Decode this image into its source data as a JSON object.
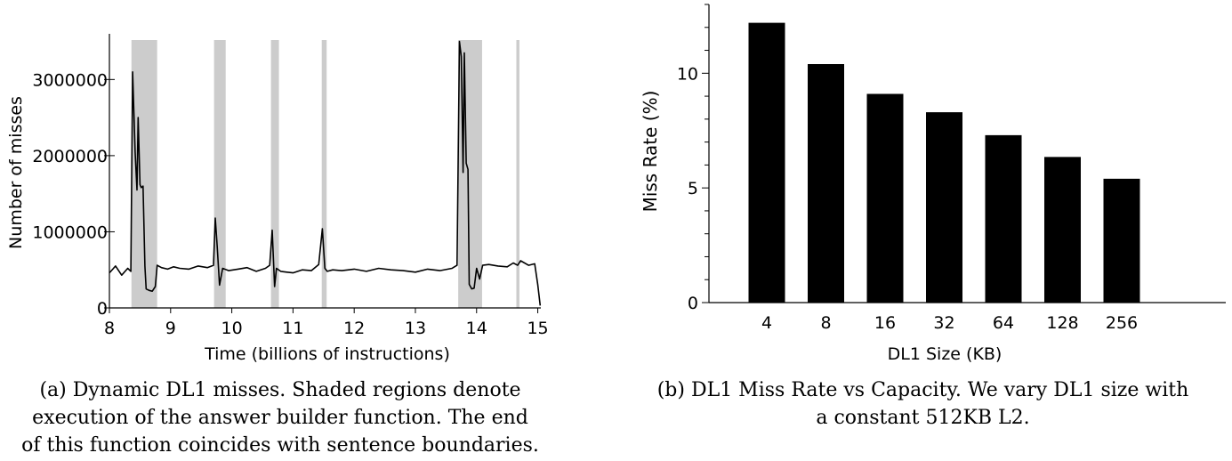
{
  "charts": {
    "a": {
      "ylabel": "Number of misses",
      "xlabel": "Time (billions of instructions)",
      "caption_lines": [
        "(a) Dynamic DL1 misses. Shaded regions denote",
        "execution of the answer builder function. The end",
        "of this function coincides with sentence boundaries."
      ]
    },
    "b": {
      "ylabel": "Miss Rate (%)",
      "xlabel": "DL1 Size (KB)",
      "caption_lines": [
        "(b) DL1 Miss Rate vs Capacity. We vary DL1 size with",
        "a constant 512KB L2."
      ]
    }
  },
  "chart_data": [
    {
      "type": "line",
      "title": "",
      "xlabel": "Time (billions of instructions)",
      "ylabel": "Number of misses",
      "xlim": [
        8,
        15.05
      ],
      "ylim": [
        0,
        3600000
      ],
      "xticks": [
        8,
        9,
        10,
        11,
        12,
        13,
        14,
        15
      ],
      "yticks": [
        0,
        1000000,
        2000000,
        3000000
      ],
      "shaded_regions": [
        [
          8.36,
          8.78
        ],
        [
          9.71,
          9.9
        ],
        [
          10.64,
          10.77
        ],
        [
          11.47,
          11.55
        ],
        [
          13.7,
          14.09
        ],
        [
          14.65,
          14.7
        ]
      ],
      "shade_color": "#cccccc",
      "line_color": "#000000",
      "x": [
        8.0,
        8.1,
        8.2,
        8.3,
        8.35,
        8.38,
        8.42,
        8.45,
        8.47,
        8.5,
        8.52,
        8.55,
        8.58,
        8.6,
        8.65,
        8.7,
        8.75,
        8.78,
        8.85,
        8.95,
        9.05,
        9.15,
        9.3,
        9.45,
        9.6,
        9.7,
        9.73,
        9.76,
        9.8,
        9.85,
        9.95,
        10.1,
        10.25,
        10.4,
        10.55,
        10.62,
        10.66,
        10.7,
        10.73,
        10.8,
        10.9,
        11.0,
        11.15,
        11.3,
        11.42,
        11.48,
        11.52,
        11.56,
        11.65,
        11.8,
        12.0,
        12.2,
        12.4,
        12.6,
        12.8,
        13.0,
        13.2,
        13.4,
        13.6,
        13.68,
        13.72,
        13.75,
        13.78,
        13.8,
        13.83,
        13.86,
        13.88,
        13.92,
        13.96,
        14.0,
        14.05,
        14.1,
        14.2,
        14.35,
        14.5,
        14.6,
        14.67,
        14.72,
        14.85,
        14.95,
        15.0,
        15.04
      ],
      "y": [
        460000,
        550000,
        430000,
        520000,
        480000,
        3100000,
        2050000,
        1550000,
        2500000,
        1620000,
        1580000,
        1600000,
        550000,
        250000,
        230000,
        220000,
        280000,
        560000,
        530000,
        510000,
        540000,
        520000,
        510000,
        550000,
        530000,
        560000,
        1180000,
        820000,
        300000,
        520000,
        490000,
        510000,
        530000,
        480000,
        520000,
        560000,
        1020000,
        280000,
        520000,
        480000,
        470000,
        460000,
        500000,
        490000,
        570000,
        1040000,
        520000,
        480000,
        500000,
        490000,
        510000,
        480000,
        520000,
        500000,
        490000,
        470000,
        510000,
        490000,
        520000,
        560000,
        3500000,
        3300000,
        1780000,
        3350000,
        1900000,
        1820000,
        310000,
        250000,
        260000,
        520000,
        380000,
        560000,
        570000,
        550000,
        540000,
        590000,
        560000,
        620000,
        560000,
        580000,
        300000,
        30000
      ]
    },
    {
      "type": "bar",
      "title": "",
      "xlabel": "DL1 Size (KB)",
      "ylabel": "Miss Rate (%)",
      "categories": [
        "4",
        "8",
        "16",
        "32",
        "64",
        "128",
        "256"
      ],
      "values": [
        12.2,
        10.4,
        9.1,
        8.3,
        7.3,
        6.35,
        5.4
      ],
      "ylim": [
        0,
        13
      ],
      "yticks": [
        0,
        5,
        10
      ],
      "bar_color": "#000000"
    }
  ]
}
